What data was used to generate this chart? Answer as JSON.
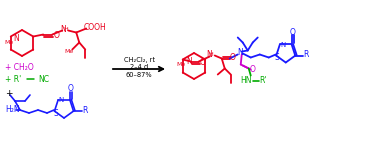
{
  "bg_color": "#ffffff",
  "red": "#e8001c",
  "blue": "#1a1aff",
  "green": "#00aa00",
  "magenta": "#cc00cc",
  "black": "#000000",
  "arrow_text1": "CH₂Cl₂, rt",
  "arrow_text2": "2–4 d",
  "arrow_text3": "60–87%"
}
